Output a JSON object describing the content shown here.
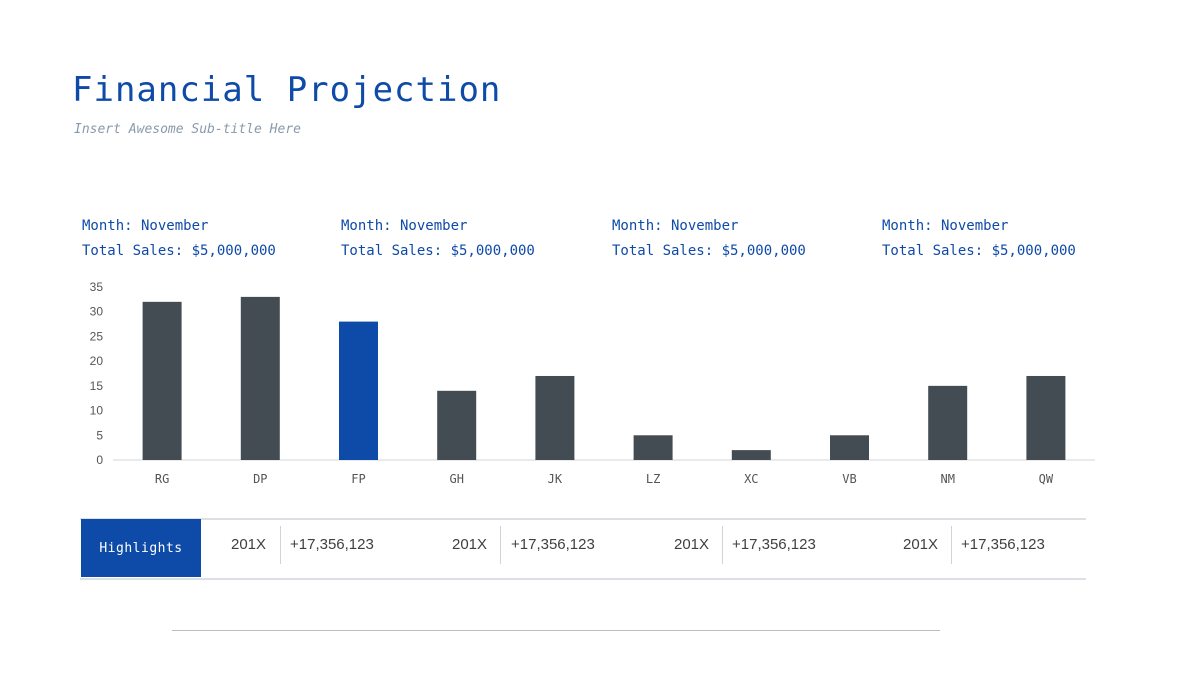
{
  "header": {
    "title": "Financial Projection",
    "subtitle": "Insert Awesome Sub-title Here"
  },
  "stats": [
    {
      "month": "Month: November",
      "sales": "Total Sales: $5,000,000"
    },
    {
      "month": "Month: November",
      "sales": "Total Sales: $5,000,000"
    },
    {
      "month": "Month: November",
      "sales": "Total Sales: $5,000,000"
    },
    {
      "month": "Month: November",
      "sales": "Total Sales: $5,000,000"
    }
  ],
  "chart_data": {
    "type": "bar",
    "categories": [
      "RG",
      "DP",
      "FP",
      "GH",
      "JK",
      "LZ",
      "XC",
      "VB",
      "NM",
      "QW"
    ],
    "values": [
      32,
      33,
      28,
      14,
      17,
      5,
      2,
      5,
      15,
      17
    ],
    "highlight_index": 2,
    "yticks": [
      0,
      5,
      10,
      15,
      20,
      25,
      30,
      35
    ],
    "ylim": [
      0,
      35
    ],
    "title": "",
    "xlabel": "",
    "ylabel": "",
    "colors": {
      "default": "#434c52",
      "highlight": "#0e4aa8"
    }
  },
  "highlights": {
    "label": "Highlights",
    "items": [
      {
        "year": "201X",
        "value": "+17,356,123"
      },
      {
        "year": "201X",
        "value": "+17,356,123"
      },
      {
        "year": "201X",
        "value": "+17,356,123"
      },
      {
        "year": "201X",
        "value": "+17,356,123"
      }
    ]
  }
}
